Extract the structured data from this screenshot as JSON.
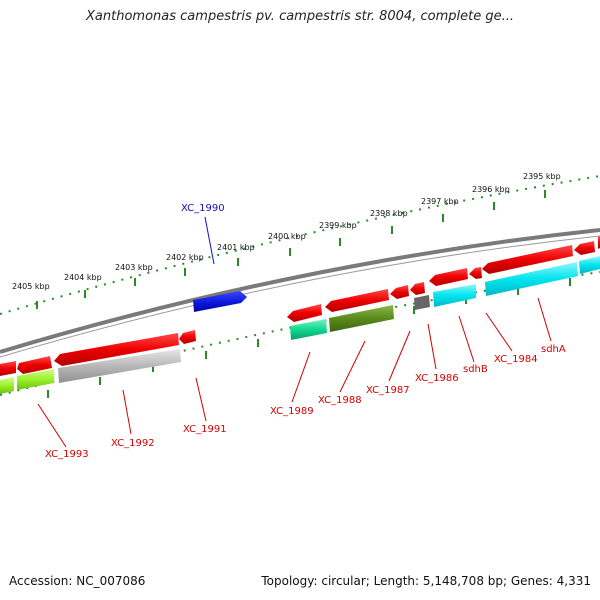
{
  "title": "Xanthomonas campestris pv. campestris str. 8004, complete ge...",
  "footer": {
    "accession": "Accession: NC_007086",
    "summary": "Topology: circular; Length: 5,148,708 bp; Genes: 4,331"
  },
  "scale_labels": [
    "2405 kbp",
    "2404 kbp",
    "2403 kbp",
    "2402 kbp",
    "2401 kbp",
    "2400 kbp",
    "2399 kbp",
    "2398 kbp",
    "2397 kbp",
    "2396 kbp",
    "2395 kbp"
  ],
  "gene_labels": {
    "xc1990": "XC_1990",
    "xc1993": "XC_1993",
    "xc1992": "XC_1992",
    "xc1991": "XC_1991",
    "xc1989": "XC_1989",
    "xc1988": "XC_1988",
    "xc1987": "XC_1987",
    "xc1986": "XC_1986",
    "sdhB": "sdhB",
    "xc1984": "XC_1984",
    "sdhA": "sdhA"
  },
  "colors": {
    "gene": "#ee0000",
    "gene_highlight": "#0a14d6",
    "backbone": "#777777",
    "tick": "#2a8a2a",
    "label": "#d40000",
    "cyan": "#00e5ee",
    "green": "#10d890",
    "olive": "#5a8a1a",
    "lime": "#9af02a",
    "grey_bar": "#b8b8b8",
    "dark_grey": "#666666"
  }
}
